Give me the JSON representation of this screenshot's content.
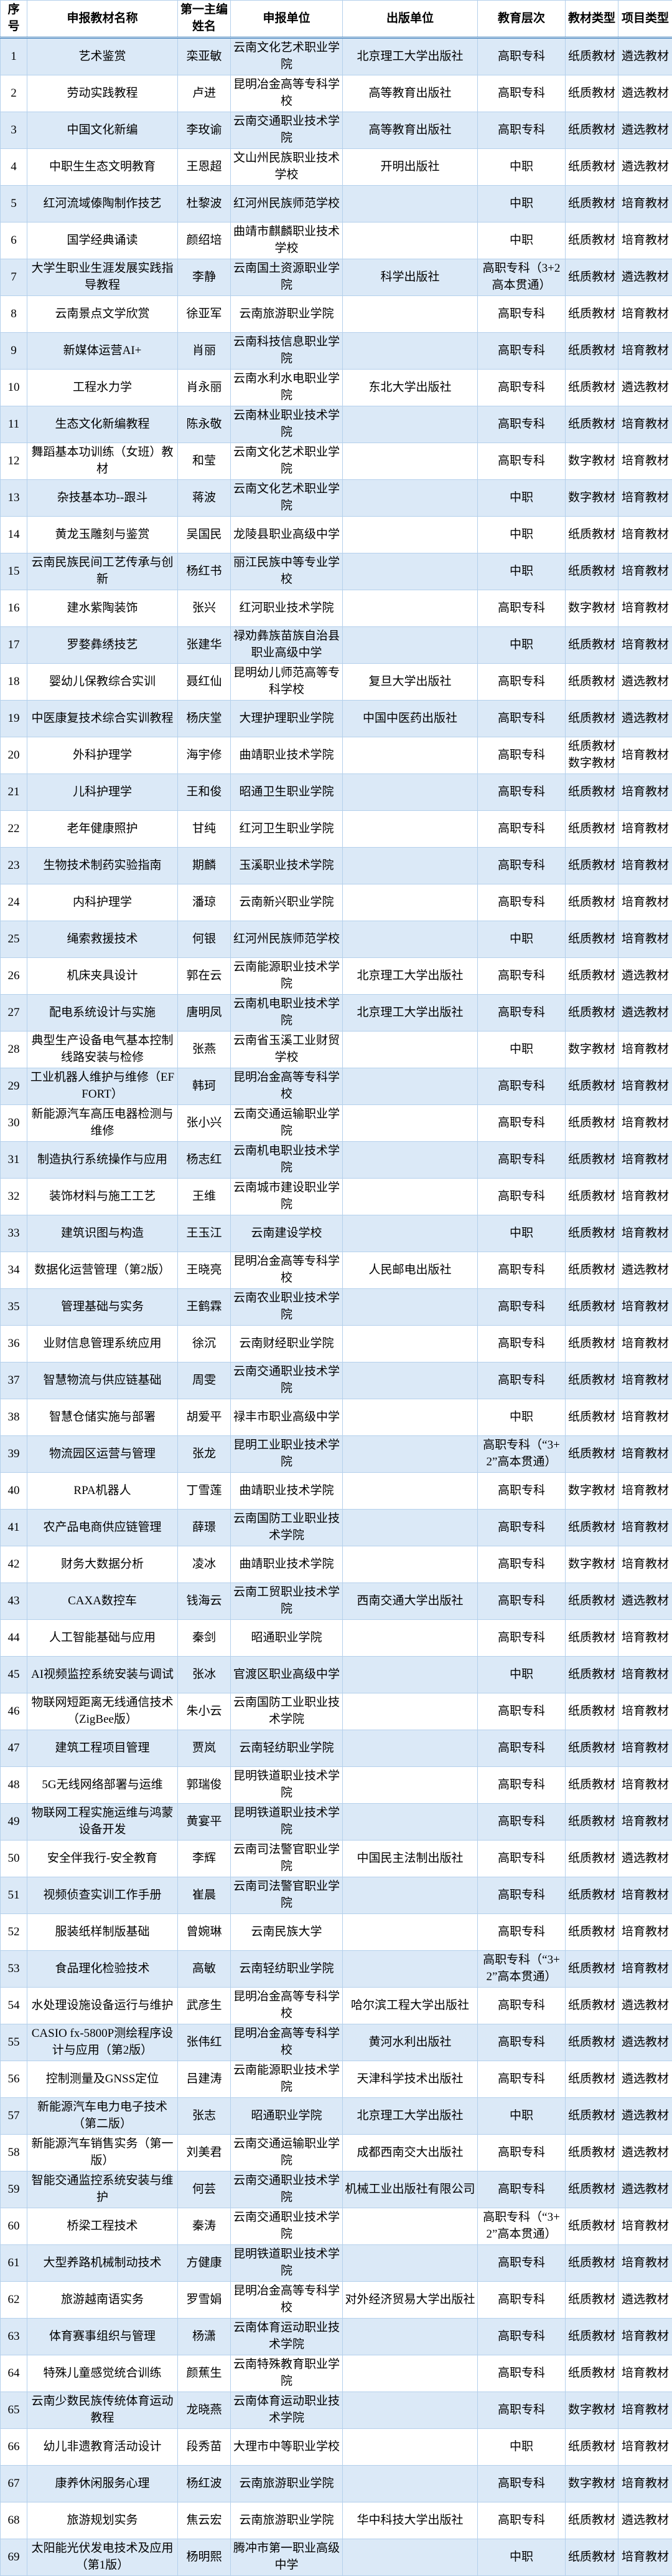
{
  "colors": {
    "row_alt": "#dbe9f7",
    "row": "#ffffff",
    "border": "#b4d0ec",
    "header_rule": "#2e74b5",
    "text": "#000000"
  },
  "table": {
    "columns": [
      {
        "key": "num",
        "label": "序号"
      },
      {
        "key": "name",
        "label": "申报教材名称"
      },
      {
        "key": "editor",
        "label": "第一主编姓名"
      },
      {
        "key": "unit",
        "label": "申报单位"
      },
      {
        "key": "publisher",
        "label": "出版单位"
      },
      {
        "key": "level",
        "label": "教育层次"
      },
      {
        "key": "type",
        "label": "教材类型"
      },
      {
        "key": "project",
        "label": "项目类型"
      }
    ],
    "rows": [
      [
        1,
        "艺术鉴赏",
        "栾亚敏",
        "云南文化艺术职业学院",
        "北京理工大学出版社",
        "高职专科",
        "纸质教材",
        "遴选教材"
      ],
      [
        2,
        "劳动实践教程",
        "卢进",
        "昆明冶金高等专科学校",
        "高等教育出版社",
        "高职专科",
        "纸质教材",
        "遴选教材"
      ],
      [
        3,
        "中国文化新编",
        "李玫谕",
        "云南交通职业技术学院",
        "高等教育出版社",
        "高职专科",
        "纸质教材",
        "遴选教材"
      ],
      [
        4,
        "中职生生态文明教育",
        "王恩超",
        "文山州民族职业技术学校",
        "开明出版社",
        "中职",
        "纸质教材",
        "遴选教材"
      ],
      [
        5,
        "红河流域傣陶制作技艺",
        "杜黎波",
        "红河州民族师范学校",
        "",
        "中职",
        "纸质教材",
        "培育教材"
      ],
      [
        6,
        "国学经典诵读",
        "颜绍培",
        "曲靖市麒麟职业技术学校",
        "",
        "中职",
        "纸质教材",
        "培育教材"
      ],
      [
        7,
        "大学生职业生涯发展实践指导教程",
        "李静",
        "云南国土资源职业学院",
        "科学出版社",
        "高职专科（3+2 高本贯通）",
        "纸质教材",
        "遴选教材"
      ],
      [
        8,
        "云南景点文学欣赏",
        "徐亚军",
        "云南旅游职业学院",
        "",
        "高职专科",
        "纸质教材",
        "培育教材"
      ],
      [
        9,
        "新媒体运营AI+",
        "肖丽",
        "云南科技信息职业学院",
        "",
        "高职专科",
        "纸质教材",
        "培育教材"
      ],
      [
        10,
        "工程水力学",
        "肖永丽",
        "云南水利水电职业学院",
        "东北大学出版社",
        "高职专科",
        "纸质教材",
        "遴选教材"
      ],
      [
        11,
        "生态文化新编教程",
        "陈永敬",
        "云南林业职业技术学院",
        "",
        "高职专科",
        "纸质教材",
        "培育教材"
      ],
      [
        12,
        "舞蹈基本功训练（女班）教材",
        "和莹",
        "云南文化艺术职业学院",
        "",
        "高职专科",
        "数字教材",
        "培育教材"
      ],
      [
        13,
        "杂技基本功--跟斗",
        "蒋波",
        "云南文化艺术职业学院",
        "",
        "中职",
        "数字教材",
        "培育教材"
      ],
      [
        14,
        "黄龙玉雕刻与鉴赏",
        "吴国民",
        "龙陵县职业高级中学",
        "",
        "中职",
        "纸质教材",
        "培育教材"
      ],
      [
        15,
        "云南民族民间工艺传承与创新",
        "杨红书",
        "丽江民族中等专业学校",
        "",
        "中职",
        "纸质教材",
        "培育教材"
      ],
      [
        16,
        "建水紫陶装饰",
        "张兴",
        "红河职业技术学院",
        "",
        "高职专科",
        "数字教材",
        "培育教材"
      ],
      [
        17,
        "罗婺彝绣技艺",
        "张建华",
        "禄劝彝族苗族自治县职业高级中学",
        "",
        "中职",
        "纸质教材",
        "培育教材"
      ],
      [
        18,
        "婴幼儿保教综合实训",
        "聂红仙",
        "昆明幼儿师范高等专科学校",
        "复旦大学出版社",
        "高职专科",
        "纸质教材",
        "遴选教材"
      ],
      [
        19,
        "中医康复技术综合实训教程",
        "杨庆堂",
        "大理护理职业学院",
        "中国中医药出版社",
        "高职专科",
        "纸质教材",
        "遴选教材"
      ],
      [
        20,
        "外科护理学",
        "海宇修",
        "曲靖职业技术学院",
        "",
        "高职专科",
        "纸质教材 数字教材",
        "培育教材"
      ],
      [
        21,
        "儿科护理学",
        "王和俊",
        "昭通卫生职业学院",
        "",
        "高职专科",
        "纸质教材",
        "培育教材"
      ],
      [
        22,
        "老年健康照护",
        "甘纯",
        "红河卫生职业学院",
        "",
        "高职专科",
        "纸质教材",
        "培育教材"
      ],
      [
        23,
        "生物技术制药实验指南",
        "期麟",
        "玉溪职业技术学院",
        "",
        "高职专科",
        "纸质教材",
        "培育教材"
      ],
      [
        24,
        "内科护理学",
        "潘琼",
        "云南新兴职业学院",
        "",
        "高职专科",
        "纸质教材",
        "培育教材"
      ],
      [
        25,
        "绳索救援技术",
        "何银",
        "红河州民族师范学校",
        "",
        "中职",
        "纸质教材",
        "培育教材"
      ],
      [
        26,
        "机床夹具设计",
        "郭在云",
        "云南能源职业技术学院",
        "北京理工大学出版社",
        "高职专科",
        "纸质教材",
        "遴选教材"
      ],
      [
        27,
        "配电系统设计与实施",
        "唐明凤",
        "云南机电职业技术学院",
        "北京理工大学出版社",
        "高职专科",
        "纸质教材",
        "遴选教材"
      ],
      [
        28,
        "典型生产设备电气基本控制线路安装与检修",
        "张燕",
        "云南省玉溪工业财贸学校",
        "",
        "中职",
        "数字教材",
        "培育教材"
      ],
      [
        29,
        "工业机器人维护与维修（EFFORT）",
        "韩珂",
        "昆明冶金高等专科学校",
        "",
        "高职专科",
        "纸质教材",
        "培育教材"
      ],
      [
        30,
        "新能源汽车高压电器检测与维修",
        "张小兴",
        "云南交通运输职业学院",
        "",
        "高职专科",
        "纸质教材",
        "培育教材"
      ],
      [
        31,
        "制造执行系统操作与应用",
        "杨志红",
        "云南机电职业技术学院",
        "",
        "高职专科",
        "纸质教材",
        "培育教材"
      ],
      [
        32,
        "装饰材料与施工工艺",
        "王维",
        "云南城市建设职业学院",
        "",
        "高职专科",
        "纸质教材",
        "培育教材"
      ],
      [
        33,
        "建筑识图与构造",
        "王玉江",
        "云南建设学校",
        "",
        "中职",
        "纸质教材",
        "培育教材"
      ],
      [
        34,
        "数据化运营管理（第2版）",
        "王晓亮",
        "昆明冶金高等专科学校",
        "人民邮电出版社",
        "高职专科",
        "纸质教材",
        "遴选教材"
      ],
      [
        35,
        "管理基础与实务",
        "王鹤霖",
        "云南农业职业技术学院",
        "",
        "高职专科",
        "纸质教材",
        "培育教材"
      ],
      [
        36,
        "业财信息管理系统应用",
        "徐沉",
        "云南财经职业学院",
        "",
        "高职专科",
        "纸质教材",
        "培育教材"
      ],
      [
        37,
        "智慧物流与供应链基础",
        "周雯",
        "云南交通职业技术学院",
        "",
        "高职专科",
        "纸质教材",
        "培育教材"
      ],
      [
        38,
        "智慧仓储实施与部署",
        "胡爱平",
        "禄丰市职业高级中学",
        "",
        "中职",
        "纸质教材",
        "培育教材"
      ],
      [
        39,
        "物流园区运营与管理",
        "张龙",
        "昆明工业职业技术学院",
        "",
        "高职专科（“3+2”高本贯通）",
        "纸质教材",
        "培育教材"
      ],
      [
        40,
        "RPA机器人",
        "丁雪莲",
        "曲靖职业技术学院",
        "",
        "高职专科",
        "数字教材",
        "培育教材"
      ],
      [
        41,
        "农产品电商供应链管理",
        "薛璟",
        "云南国防工业职业技术学院",
        "",
        "高职专科",
        "纸质教材",
        "培育教材"
      ],
      [
        42,
        "财务大数据分析",
        "凌冰",
        "曲靖职业技术学院",
        "",
        "高职专科",
        "数字教材",
        "培育教材"
      ],
      [
        43,
        "CAXA数控车",
        "钱海云",
        "云南工贸职业技术学院",
        "西南交通大学出版社",
        "高职专科",
        "纸质教材",
        "遴选教材"
      ],
      [
        44,
        "人工智能基础与应用",
        "秦剑",
        "昭通职业学院",
        "",
        "高职专科",
        "纸质教材",
        "培育教材"
      ],
      [
        45,
        "AI视频监控系统安装与调试",
        "张冰",
        "官渡区职业高级中学",
        "",
        "中职",
        "纸质教材",
        "培育教材"
      ],
      [
        46,
        "物联网短距离无线通信技术（ZigBee版）",
        "朱小云",
        "云南国防工业职业技术学院",
        "",
        "高职专科",
        "纸质教材",
        "培育教材"
      ],
      [
        47,
        "建筑工程项目管理",
        "贾岚",
        "云南轻纺职业学院",
        "",
        "高职专科",
        "纸质教材",
        "培育教材"
      ],
      [
        48,
        "5G无线网络部署与运维",
        "郭瑞俊",
        "昆明铁道职业技术学院",
        "",
        "高职专科",
        "纸质教材",
        "培育教材"
      ],
      [
        49,
        "物联网工程实施运维与鸿蒙设备开发",
        "黄宴平",
        "昆明铁道职业技术学院",
        "",
        "高职专科",
        "纸质教材",
        "培育教材"
      ],
      [
        50,
        "安全伴我行-安全教育",
        "李辉",
        "云南司法警官职业学院",
        "中国民主法制出版社",
        "高职专科",
        "纸质教材",
        "遴选教材"
      ],
      [
        51,
        "视频侦查实训工作手册",
        "崔晨",
        "云南司法警官职业学院",
        "",
        "高职专科",
        "纸质教材",
        "培育教材"
      ],
      [
        52,
        "服装纸样制版基础",
        "曾婉琳",
        "云南民族大学",
        "",
        "高职专科",
        "纸质教材",
        "培育教材"
      ],
      [
        53,
        "食品理化检验技术",
        "高敏",
        "云南轻纺职业学院",
        "",
        "高职专科（“3+2”高本贯通）",
        "纸质教材",
        "培育教材"
      ],
      [
        54,
        "水处理设施设备运行与维护",
        "武彦生",
        "昆明冶金高等专科学校",
        "哈尔滨工程大学出版社",
        "高职专科",
        "纸质教材",
        "遴选教材"
      ],
      [
        55,
        "CASIO fx-5800P测绘程序设计与应用（第2版）",
        "张伟红",
        "昆明冶金高等专科学校",
        "黄河水利出版社",
        "高职专科",
        "纸质教材",
        "遴选教材"
      ],
      [
        56,
        "控制测量及GNSS定位",
        "吕建涛",
        "云南能源职业技术学院",
        "天津科学技术出版社",
        "高职专科",
        "纸质教材",
        "遴选教材"
      ],
      [
        57,
        "新能源汽车电力电子技术（第二版）",
        "张志",
        "昭通职业学院",
        "北京理工大学出版社",
        "中职",
        "纸质教材",
        "遴选教材"
      ],
      [
        58,
        "新能源汽车销售实务（第一版）",
        "刘美君",
        "云南交通运输职业学院",
        "成都西南交大出版社",
        "高职专科",
        "纸质教材",
        "遴选教材"
      ],
      [
        59,
        "智能交通监控系统安装与维护",
        "何芸",
        "云南交通职业技术学院",
        "机械工业出版社有限公司",
        "高职专科",
        "纸质教材",
        "遴选教材"
      ],
      [
        60,
        "桥梁工程技术",
        "秦涛",
        "云南交通职业技术学院",
        "",
        "高职专科（“3+2”高本贯通）",
        "纸质教材",
        "培育教材"
      ],
      [
        61,
        "大型养路机械制动技术",
        "方健康",
        "昆明铁道职业技术学院",
        "",
        "高职专科",
        "纸质教材",
        "培育教材"
      ],
      [
        62,
        "旅游越南语实务",
        "罗雪娟",
        "昆明冶金高等专科学校",
        "对外经济贸易大学出版社",
        "高职专科",
        "纸质教材",
        "遴选教材"
      ],
      [
        63,
        "体育赛事组织与管理",
        "杨潇",
        "云南体育运动职业技术学院",
        "",
        "高职专科",
        "纸质教材",
        "培育教材"
      ],
      [
        64,
        "特殊儿童感觉统合训练",
        "颜蕉生",
        "云南特殊教育职业学院",
        "",
        "高职专科",
        "纸质教材",
        "培育教材"
      ],
      [
        65,
        "云南少数民族传统体育运动教程",
        "龙晓燕",
        "云南体育运动职业技术学院",
        "",
        "高职专科",
        "数字教材",
        "培育教材"
      ],
      [
        66,
        "幼儿非遗教育活动设计",
        "段秀苗",
        "大理市中等职业学校",
        "",
        "中职",
        "纸质教材",
        "培育教材"
      ],
      [
        67,
        "康养休闲服务心理",
        "杨红波",
        "云南旅游职业学院",
        "",
        "高职专科",
        "数字教材",
        "培育教材"
      ],
      [
        68,
        "旅游规划实务",
        "焦云宏",
        "云南旅游职业学院",
        "华中科技大学出版社",
        "高职专科",
        "纸质教材",
        "遴选教材"
      ],
      [
        69,
        "太阳能光伏发电技术及应用（第1版）",
        "杨明熙",
        "腾冲市第一职业高级中学",
        "",
        "中职",
        "纸质教材",
        "培育教材"
      ]
    ]
  }
}
